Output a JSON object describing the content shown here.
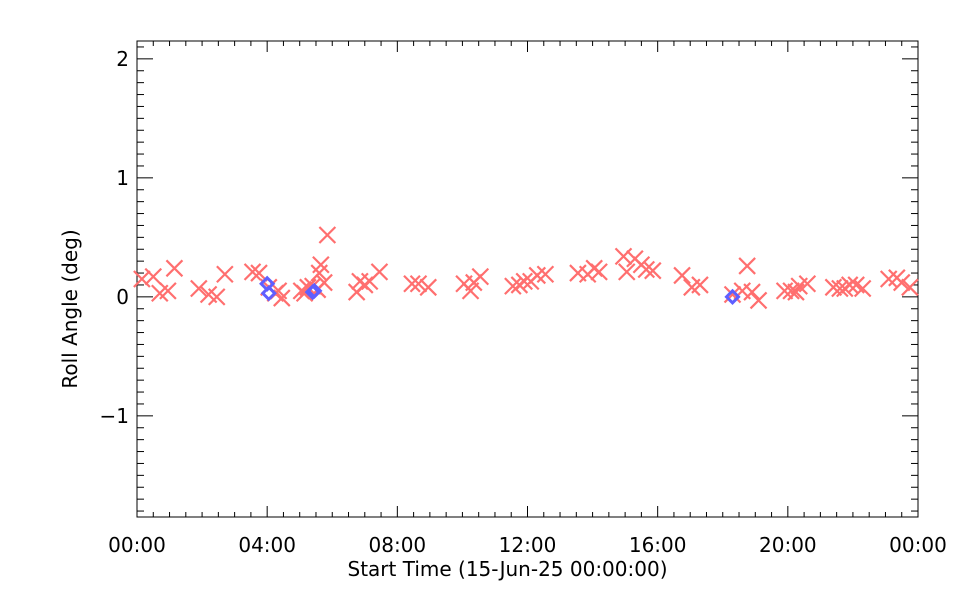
{
  "chart_data": {
    "type": "scatter",
    "xlabel": "Start Time (15-Jun-25 00:00:00)",
    "ylabel": "Roll Angle (deg)",
    "xlim": [
      0,
      24
    ],
    "ylim": [
      -1.85,
      2.15
    ],
    "x_units": "hours after 15-Jun-25 00:00:00",
    "x_ticks": [
      0,
      4,
      8,
      12,
      16,
      20,
      24
    ],
    "x_tick_labels": [
      "00:00",
      "04:00",
      "08:00",
      "12:00",
      "16:00",
      "20:00",
      "00:00"
    ],
    "y_ticks": [
      -1,
      0,
      1,
      2
    ],
    "y_tick_labels": [
      "−1",
      "0",
      "1",
      "2"
    ],
    "grid": false,
    "series": [
      {
        "marker": "x",
        "color": "#ff6f6f",
        "points": [
          [
            0.15,
            0.15
          ],
          [
            0.5,
            0.17
          ],
          [
            0.7,
            0.03
          ],
          [
            0.95,
            0.05
          ],
          [
            1.15,
            0.24
          ],
          [
            1.9,
            0.07
          ],
          [
            2.2,
            0.02
          ],
          [
            2.45,
            0.0
          ],
          [
            2.7,
            0.19
          ],
          [
            3.55,
            0.21
          ],
          [
            3.75,
            0.2
          ],
          [
            4.05,
            0.08
          ],
          [
            4.25,
            0.03
          ],
          [
            4.35,
            0.05
          ],
          [
            4.45,
            -0.01
          ],
          [
            5.05,
            0.05
          ],
          [
            5.15,
            0.03
          ],
          [
            5.25,
            0.08
          ],
          [
            5.4,
            0.09
          ],
          [
            5.55,
            0.06
          ],
          [
            5.65,
            0.27
          ],
          [
            5.6,
            0.2
          ],
          [
            5.75,
            0.12
          ],
          [
            5.85,
            0.52
          ],
          [
            6.75,
            0.04
          ],
          [
            6.85,
            0.13
          ],
          [
            7.0,
            0.1
          ],
          [
            7.15,
            0.13
          ],
          [
            7.45,
            0.21
          ],
          [
            8.45,
            0.11
          ],
          [
            8.65,
            0.11
          ],
          [
            8.95,
            0.08
          ],
          [
            10.05,
            0.11
          ],
          [
            10.25,
            0.05
          ],
          [
            10.35,
            0.12
          ],
          [
            10.55,
            0.17
          ],
          [
            11.55,
            0.09
          ],
          [
            11.75,
            0.1
          ],
          [
            11.9,
            0.13
          ],
          [
            12.1,
            0.13
          ],
          [
            12.3,
            0.18
          ],
          [
            12.55,
            0.19
          ],
          [
            13.55,
            0.2
          ],
          [
            13.85,
            0.19
          ],
          [
            14.05,
            0.24
          ],
          [
            14.2,
            0.21
          ],
          [
            14.95,
            0.34
          ],
          [
            15.05,
            0.21
          ],
          [
            15.3,
            0.32
          ],
          [
            15.5,
            0.27
          ],
          [
            15.65,
            0.23
          ],
          [
            15.85,
            0.22
          ],
          [
            16.75,
            0.18
          ],
          [
            17.05,
            0.08
          ],
          [
            17.3,
            0.1
          ],
          [
            18.3,
            0.02
          ],
          [
            18.6,
            0.05
          ],
          [
            18.75,
            0.26
          ],
          [
            18.9,
            0.04
          ],
          [
            19.1,
            -0.03
          ],
          [
            19.9,
            0.05
          ],
          [
            20.1,
            0.05
          ],
          [
            20.25,
            0.04
          ],
          [
            20.35,
            0.09
          ],
          [
            20.6,
            0.11
          ],
          [
            21.4,
            0.08
          ],
          [
            21.6,
            0.07
          ],
          [
            21.75,
            0.07
          ],
          [
            21.9,
            0.1
          ],
          [
            22.1,
            0.1
          ],
          [
            22.3,
            0.07
          ],
          [
            23.1,
            0.15
          ],
          [
            23.35,
            0.16
          ],
          [
            23.5,
            0.12
          ],
          [
            23.75,
            0.08
          ]
        ]
      },
      {
        "marker": "diamond",
        "color": "#5f5fff",
        "points": [
          [
            4.0,
            0.11
          ],
          [
            4.05,
            0.03
          ],
          [
            5.4,
            0.04
          ],
          [
            5.45,
            0.05
          ],
          [
            18.3,
            0.0
          ]
        ]
      }
    ]
  }
}
